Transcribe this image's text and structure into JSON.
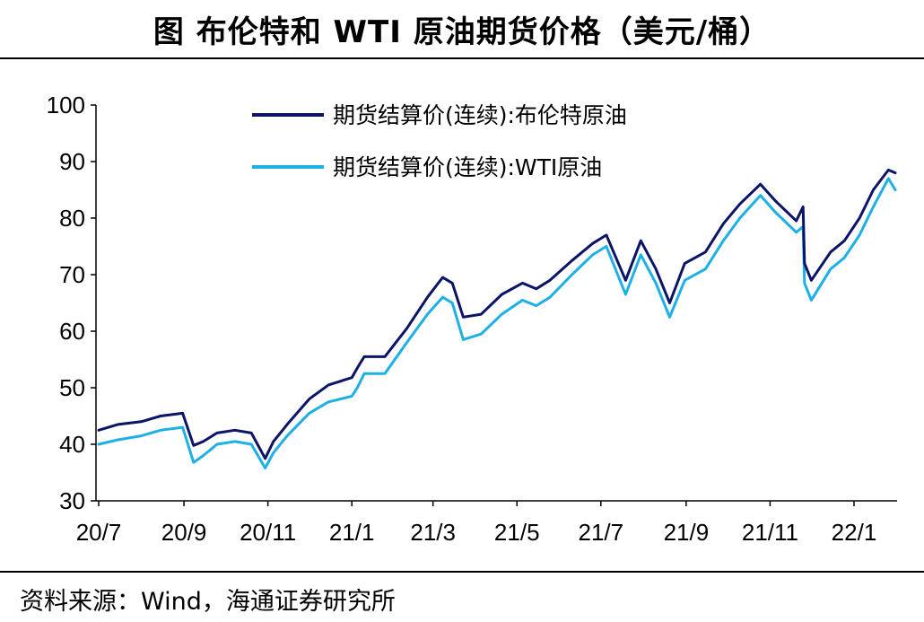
{
  "title": "图  布伦特和 WTI 原油期货价格（美元/桶）",
  "source": "资料来源：Wind，海通证券研究所",
  "colors": {
    "brent": "#0b1466",
    "wti": "#1cb0e4"
  },
  "chart_data": {
    "type": "line",
    "title": "图  布伦特和 WTI 原油期货价格（美元/桶）",
    "xlabel": "",
    "ylabel": "",
    "ylim": [
      30,
      100
    ],
    "yticks": [
      "30",
      "40",
      "50",
      "60",
      "70",
      "80",
      "90",
      "100"
    ],
    "xlim": [
      "2020-07-01",
      "2022-01-31"
    ],
    "xticks": [
      {
        "date": "2020-07-01",
        "label": "20/7"
      },
      {
        "date": "2020-09-01",
        "label": "20/9"
      },
      {
        "date": "2020-11-01",
        "label": "20/11"
      },
      {
        "date": "2021-01-01",
        "label": "21/1"
      },
      {
        "date": "2021-03-01",
        "label": "21/3"
      },
      {
        "date": "2021-05-01",
        "label": "21/5"
      },
      {
        "date": "2021-07-01",
        "label": "21/7"
      },
      {
        "date": "2021-09-01",
        "label": "21/9"
      },
      {
        "date": "2021-11-01",
        "label": "21/11"
      },
      {
        "date": "2022-01-01",
        "label": "22/1"
      }
    ],
    "grid": false,
    "legend": "top-right",
    "series": [
      {
        "name": "期货结算价(连续):布伦特原油",
        "color": "#0b1466",
        "points": [
          [
            "2020-07-01",
            42.5
          ],
          [
            "2020-07-15",
            43.5
          ],
          [
            "2020-08-01",
            44.0
          ],
          [
            "2020-08-15",
            45.0
          ],
          [
            "2020-08-31",
            45.5
          ],
          [
            "2020-09-08",
            39.8
          ],
          [
            "2020-09-15",
            40.5
          ],
          [
            "2020-09-25",
            42.0
          ],
          [
            "2020-10-08",
            42.5
          ],
          [
            "2020-10-20",
            42.0
          ],
          [
            "2020-10-30",
            37.5
          ],
          [
            "2020-11-05",
            40.5
          ],
          [
            "2020-11-15",
            43.5
          ],
          [
            "2020-12-01",
            48.0
          ],
          [
            "2020-12-15",
            50.5
          ],
          [
            "2021-01-01",
            51.8
          ],
          [
            "2021-01-05",
            53.5
          ],
          [
            "2021-01-10",
            55.5
          ],
          [
            "2021-01-25",
            55.5
          ],
          [
            "2021-02-10",
            60.5
          ],
          [
            "2021-02-25",
            66.0
          ],
          [
            "2021-03-08",
            69.5
          ],
          [
            "2021-03-15",
            68.5
          ],
          [
            "2021-03-23",
            62.5
          ],
          [
            "2021-04-05",
            63.0
          ],
          [
            "2021-04-20",
            66.5
          ],
          [
            "2021-05-05",
            68.5
          ],
          [
            "2021-05-15",
            67.5
          ],
          [
            "2021-05-25",
            69.0
          ],
          [
            "2021-06-10",
            72.5
          ],
          [
            "2021-06-25",
            75.5
          ],
          [
            "2021-07-05",
            77.0
          ],
          [
            "2021-07-19",
            69.0
          ],
          [
            "2021-07-30",
            76.0
          ],
          [
            "2021-08-10",
            71.0
          ],
          [
            "2021-08-20",
            65.0
          ],
          [
            "2021-08-31",
            72.0
          ],
          [
            "2021-09-15",
            74.0
          ],
          [
            "2021-09-28",
            79.0
          ],
          [
            "2021-10-10",
            82.5
          ],
          [
            "2021-10-25",
            86.0
          ],
          [
            "2021-11-05",
            83.0
          ],
          [
            "2021-11-20",
            79.5
          ],
          [
            "2021-11-25",
            82.0
          ],
          [
            "2021-11-26",
            72.0
          ],
          [
            "2021-12-01",
            69.0
          ],
          [
            "2021-12-15",
            74.0
          ],
          [
            "2021-12-25",
            76.0
          ],
          [
            "2022-01-05",
            80.0
          ],
          [
            "2022-01-15",
            85.0
          ],
          [
            "2022-01-26",
            88.5
          ],
          [
            "2022-01-31",
            88.0
          ]
        ]
      },
      {
        "name": "期货结算价(连续):WTI原油",
        "color": "#1cb0e4",
        "points": [
          [
            "2020-07-01",
            40.0
          ],
          [
            "2020-07-15",
            40.8
          ],
          [
            "2020-08-01",
            41.5
          ],
          [
            "2020-08-15",
            42.5
          ],
          [
            "2020-08-31",
            43.0
          ],
          [
            "2020-09-08",
            36.8
          ],
          [
            "2020-09-15",
            38.0
          ],
          [
            "2020-09-25",
            40.0
          ],
          [
            "2020-10-08",
            40.5
          ],
          [
            "2020-10-20",
            40.0
          ],
          [
            "2020-10-30",
            35.8
          ],
          [
            "2020-11-05",
            38.5
          ],
          [
            "2020-11-15",
            41.5
          ],
          [
            "2020-12-01",
            45.5
          ],
          [
            "2020-12-15",
            47.5
          ],
          [
            "2021-01-01",
            48.5
          ],
          [
            "2021-01-05",
            50.0
          ],
          [
            "2021-01-10",
            52.5
          ],
          [
            "2021-01-25",
            52.5
          ],
          [
            "2021-02-10",
            58.0
          ],
          [
            "2021-02-25",
            63.0
          ],
          [
            "2021-03-08",
            66.0
          ],
          [
            "2021-03-15",
            65.0
          ],
          [
            "2021-03-23",
            58.5
          ],
          [
            "2021-04-05",
            59.5
          ],
          [
            "2021-04-20",
            63.0
          ],
          [
            "2021-05-05",
            65.5
          ],
          [
            "2021-05-15",
            64.5
          ],
          [
            "2021-05-25",
            66.0
          ],
          [
            "2021-06-10",
            70.0
          ],
          [
            "2021-06-25",
            73.5
          ],
          [
            "2021-07-05",
            75.0
          ],
          [
            "2021-07-19",
            66.5
          ],
          [
            "2021-07-30",
            73.5
          ],
          [
            "2021-08-10",
            68.5
          ],
          [
            "2021-08-20",
            62.5
          ],
          [
            "2021-08-31",
            69.0
          ],
          [
            "2021-09-15",
            71.0
          ],
          [
            "2021-09-28",
            76.0
          ],
          [
            "2021-10-10",
            80.0
          ],
          [
            "2021-10-25",
            84.0
          ],
          [
            "2021-11-05",
            81.0
          ],
          [
            "2021-11-20",
            77.5
          ],
          [
            "2021-11-25",
            78.5
          ],
          [
            "2021-11-26",
            68.5
          ],
          [
            "2021-12-01",
            65.5
          ],
          [
            "2021-12-15",
            71.0
          ],
          [
            "2021-12-25",
            73.0
          ],
          [
            "2022-01-05",
            77.0
          ],
          [
            "2022-01-15",
            82.0
          ],
          [
            "2022-01-26",
            87.0
          ],
          [
            "2022-01-31",
            85.0
          ]
        ]
      }
    ]
  }
}
